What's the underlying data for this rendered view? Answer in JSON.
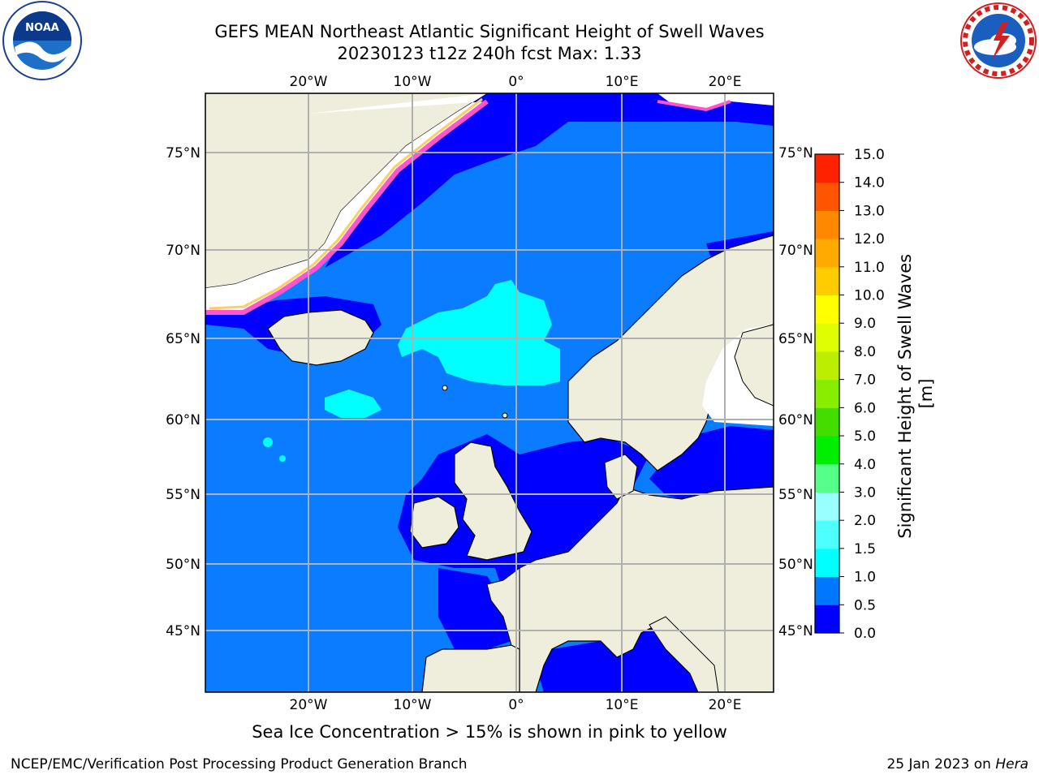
{
  "header": {
    "title_line1": "GEFS MEAN Northeast Atlantic Significant Height of Swell Waves",
    "title_line2": "20230123 t12z 240h fcst   Max: 1.33"
  },
  "logos": {
    "left": {
      "icon": "noaa-logo-icon",
      "text": "NOAA"
    },
    "right": {
      "icon": "national-weather-service-logo-icon"
    }
  },
  "map": {
    "lon_ticks": [
      "20°W",
      "10°W",
      "0°",
      "10°E",
      "20°E"
    ],
    "lat_ticks_left": [
      "75°N",
      "70°N",
      "65°N",
      "60°N",
      "55°N",
      "50°N",
      "45°N"
    ],
    "lat_ticks_right": [
      "75°N",
      "70°N",
      "65°N",
      "60°N",
      "55°N",
      "50°N",
      "45°N"
    ]
  },
  "colorbar": {
    "label": "Significant Height of Swell Waves [m]",
    "levels": [
      "0.0",
      "0.5",
      "1.0",
      "1.5",
      "2.0",
      "3.0",
      "4.0",
      "5.0",
      "6.0",
      "7.0",
      "8.0",
      "9.0",
      "10.0",
      "11.0",
      "12.0",
      "13.0",
      "14.0",
      "15.0"
    ],
    "colors": [
      "#0000ff",
      "#0077ff",
      "#00ffff",
      "#4dffff",
      "#99ffff",
      "#55ff88",
      "#00ee00",
      "#44dd00",
      "#88ee00",
      "#bbee00",
      "#ddff00",
      "#ffff00",
      "#ffcc00",
      "#ffaa00",
      "#ff8800",
      "#ff5500",
      "#ff2200"
    ]
  },
  "colors": {
    "land": "#efeedd",
    "ocean_low": "#0000ff",
    "ocean_mid": "#0a7cff",
    "ocean_high": "#00ffff",
    "ice": "#ffffff",
    "grid": "#b0b0b0"
  },
  "caption": "Sea Ice Concentration > 15% is shown in pink to yellow",
  "footer": {
    "left": "NCEP/EMC/Verification Post Processing Product Generation Branch",
    "right_date": "25 Jan 2023 on ",
    "right_host": "Hera"
  }
}
